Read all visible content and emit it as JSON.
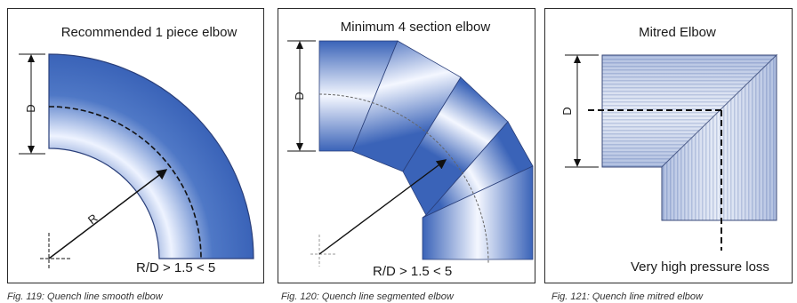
{
  "figures": [
    {
      "title": "Recommended 1 piece elbow",
      "formula": "R/D > 1.5 < 5",
      "dimension_label": "D",
      "radius_label": "R",
      "caption": "Fig. 119: Quench line smooth elbow"
    },
    {
      "title": "Minimum 4 section elbow",
      "formula": "R/D > 1.5 < 5",
      "dimension_label": "D",
      "caption": "Fig. 120: Quench line segmented elbow"
    },
    {
      "title": "Mitred Elbow",
      "formula": "Very high pressure loss",
      "dimension_label": "D",
      "caption": "Fig. 121: Quench line mitred elbow"
    }
  ],
  "colors": {
    "pipe_dark": "#3a63b8",
    "pipe_light": "#f4f7ff",
    "line": "#111111"
  }
}
